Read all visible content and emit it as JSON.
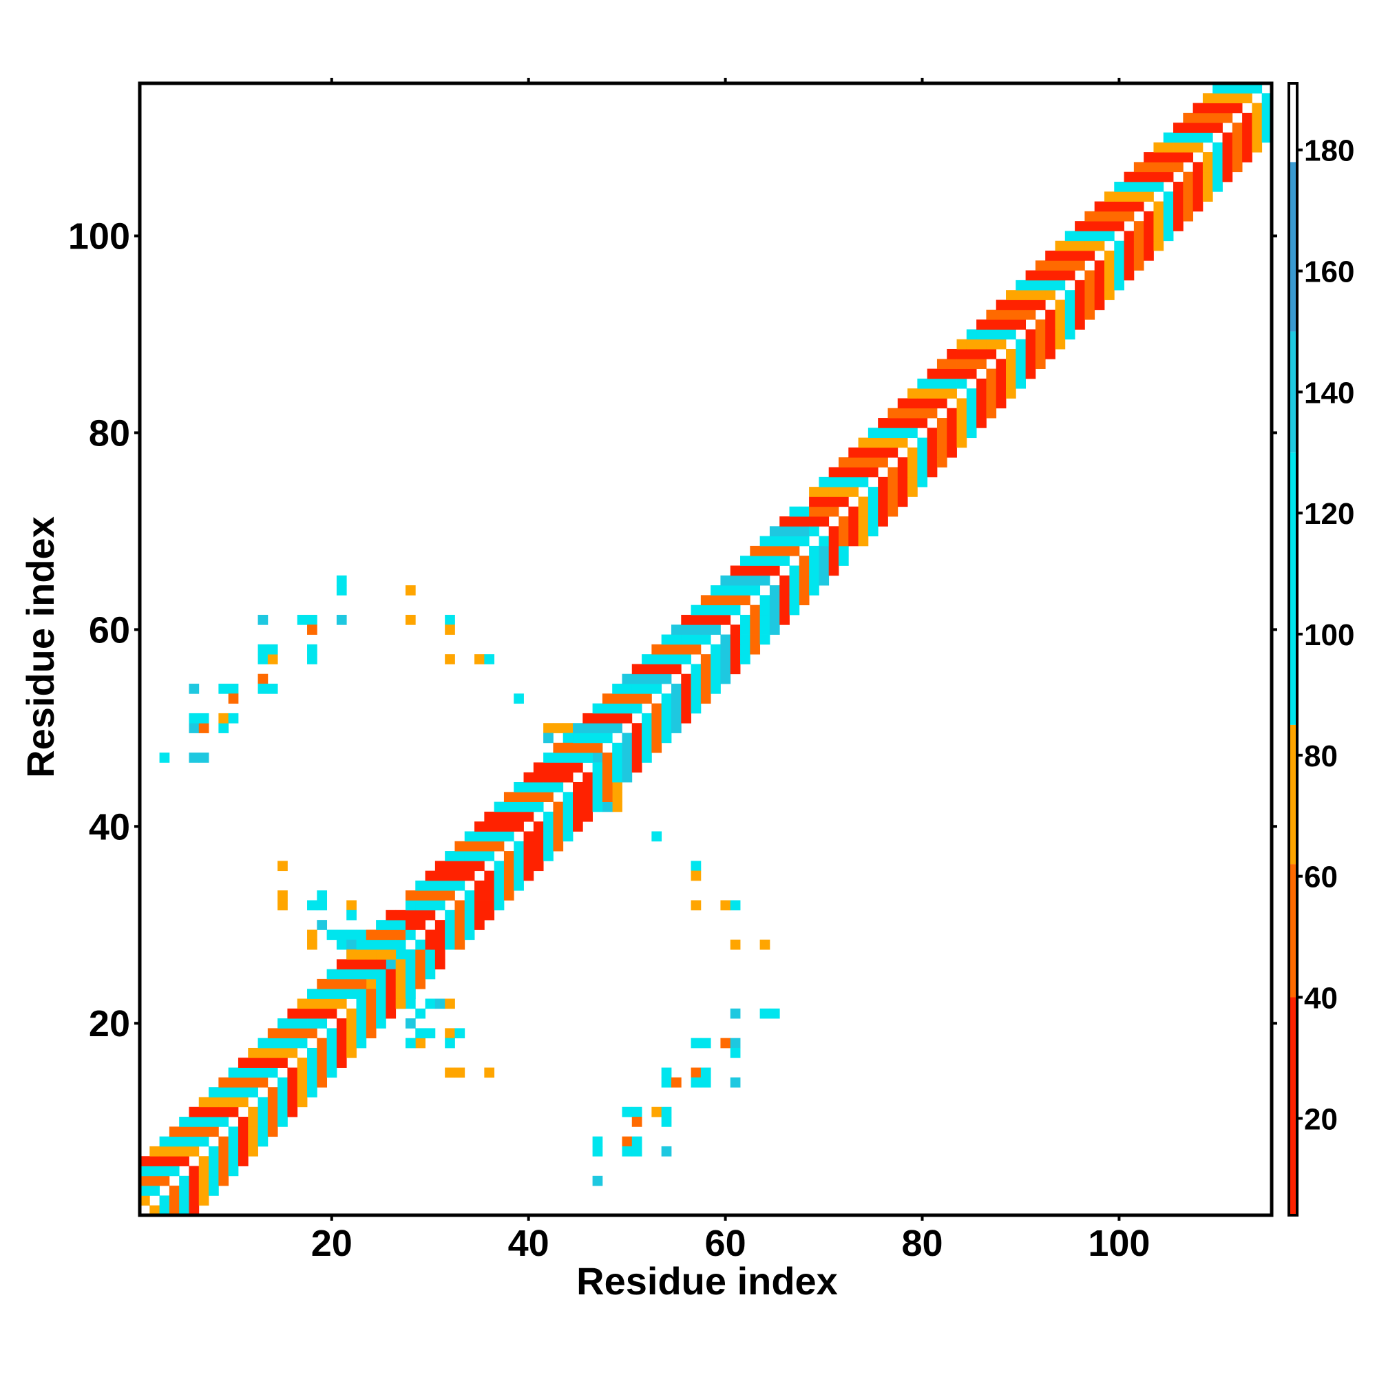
{
  "chart_data": {
    "type": "heatmap",
    "title": "",
    "xlabel": "Residue index",
    "ylabel": "Residue index",
    "xlim": [
      0.5,
      115.5
    ],
    "ylim": [
      0.5,
      115.5
    ],
    "x_ticks": [
      20,
      40,
      60,
      80,
      100
    ],
    "y_ticks": [
      20,
      40,
      60,
      80,
      100
    ],
    "x_tick_labels": [
      "20",
      "40",
      "60",
      "80",
      "100"
    ],
    "y_tick_labels": [
      "20",
      "40",
      "60",
      "80",
      "100"
    ],
    "grid": false,
    "colorbar": {
      "range": [
        4,
        191
      ],
      "ticks": [
        20,
        40,
        60,
        80,
        100,
        120,
        140,
        160,
        180
      ],
      "tick_labels": [
        "20",
        "40",
        "60",
        "80",
        "100",
        "120",
        "140",
        "160",
        "180"
      ],
      "bands": [
        {
          "from": 4,
          "to": 40,
          "color": "#ff2200"
        },
        {
          "from": 40,
          "to": 62,
          "color": "#ff6a00"
        },
        {
          "from": 62,
          "to": 85,
          "color": "#ffa500"
        },
        {
          "from": 85,
          "to": 130,
          "color": "#00e5ee"
        },
        {
          "from": 130,
          "to": 150,
          "color": "#1ec8e0"
        },
        {
          "from": 150,
          "to": 178,
          "color": "#3a9ad0"
        },
        {
          "from": 178,
          "to": 191,
          "color": "#ffffff"
        }
      ]
    },
    "diagonal_band": {
      "segments": [
        {
          "from": 1,
          "to": 27,
          "value_pattern": [
            20,
            70,
            110,
            50,
            120
          ]
        },
        {
          "from": 28,
          "to": 44,
          "value_pattern": [
            20,
            110,
            60,
            120,
            30
          ]
        },
        {
          "from": 45,
          "to": 68,
          "value_pattern": [
            20,
            110,
            50,
            120,
            140
          ]
        },
        {
          "from": 69,
          "to": 115,
          "value_pattern": [
            20,
            60,
            30,
            70,
            110
          ]
        }
      ]
    },
    "cells": [
      {
        "x": 3,
        "y": 47,
        "value": 110
      },
      {
        "x": 6,
        "y": 47,
        "value": 140
      },
      {
        "x": 7,
        "y": 47,
        "value": 140
      },
      {
        "x": 6,
        "y": 50,
        "value": 140
      },
      {
        "x": 7,
        "y": 50,
        "value": 60
      },
      {
        "x": 6,
        "y": 51,
        "value": 110
      },
      {
        "x": 7,
        "y": 51,
        "value": 110
      },
      {
        "x": 9,
        "y": 50,
        "value": 110
      },
      {
        "x": 9,
        "y": 51,
        "value": 70
      },
      {
        "x": 10,
        "y": 51,
        "value": 110
      },
      {
        "x": 6,
        "y": 54,
        "value": 140
      },
      {
        "x": 9,
        "y": 54,
        "value": 110
      },
      {
        "x": 10,
        "y": 54,
        "value": 110
      },
      {
        "x": 10,
        "y": 53,
        "value": 60
      },
      {
        "x": 13,
        "y": 55,
        "value": 60
      },
      {
        "x": 13,
        "y": 54,
        "value": 110
      },
      {
        "x": 14,
        "y": 54,
        "value": 110
      },
      {
        "x": 13,
        "y": 57,
        "value": 110
      },
      {
        "x": 14,
        "y": 57,
        "value": 70
      },
      {
        "x": 13,
        "y": 58,
        "value": 110
      },
      {
        "x": 14,
        "y": 58,
        "value": 110
      },
      {
        "x": 13,
        "y": 61,
        "value": 140
      },
      {
        "x": 17,
        "y": 61,
        "value": 110
      },
      {
        "x": 18,
        "y": 61,
        "value": 110
      },
      {
        "x": 18,
        "y": 60,
        "value": 60
      },
      {
        "x": 18,
        "y": 58,
        "value": 110
      },
      {
        "x": 18,
        "y": 57,
        "value": 110
      },
      {
        "x": 21,
        "y": 61,
        "value": 140
      },
      {
        "x": 21,
        "y": 64,
        "value": 110
      },
      {
        "x": 21,
        "y": 65,
        "value": 110
      },
      {
        "x": 28,
        "y": 64,
        "value": 70
      },
      {
        "x": 28,
        "y": 61,
        "value": 70
      },
      {
        "x": 32,
        "y": 61,
        "value": 110
      },
      {
        "x": 32,
        "y": 60,
        "value": 70
      },
      {
        "x": 32,
        "y": 57,
        "value": 70
      },
      {
        "x": 35,
        "y": 57,
        "value": 70
      },
      {
        "x": 36,
        "y": 57,
        "value": 110
      },
      {
        "x": 39,
        "y": 53,
        "value": 110
      },
      {
        "x": 42,
        "y": 50,
        "value": 70
      },
      {
        "x": 43,
        "y": 50,
        "value": 70
      },
      {
        "x": 44,
        "y": 50,
        "value": 70
      },
      {
        "x": 42,
        "y": 49,
        "value": 140
      },
      {
        "x": 44,
        "y": 49,
        "value": 110
      },
      {
        "x": 45,
        "y": 49,
        "value": 140
      },
      {
        "x": 44,
        "y": 46,
        "value": 110
      },
      {
        "x": 46,
        "y": 44,
        "value": 110
      },
      {
        "x": 47,
        "y": 44,
        "value": 110
      },
      {
        "x": 48,
        "y": 43,
        "value": 140
      },
      {
        "x": 49,
        "y": 43,
        "value": 70
      },
      {
        "x": 49,
        "y": 42,
        "value": 70
      },
      {
        "x": 48,
        "y": 42,
        "value": 140
      },
      {
        "x": 49,
        "y": 45,
        "value": 110
      },
      {
        "x": 49,
        "y": 44,
        "value": 70
      },
      {
        "x": 53,
        "y": 39,
        "value": 110
      },
      {
        "x": 57,
        "y": 36,
        "value": 110
      },
      {
        "x": 57,
        "y": 35,
        "value": 70
      },
      {
        "x": 57,
        "y": 32,
        "value": 70
      },
      {
        "x": 60,
        "y": 32,
        "value": 70
      },
      {
        "x": 61,
        "y": 32,
        "value": 110
      },
      {
        "x": 61,
        "y": 28,
        "value": 70
      },
      {
        "x": 64,
        "y": 28,
        "value": 70
      },
      {
        "x": 61,
        "y": 21,
        "value": 140
      },
      {
        "x": 64,
        "y": 21,
        "value": 110
      },
      {
        "x": 65,
        "y": 21,
        "value": 110
      },
      {
        "x": 57,
        "y": 18,
        "value": 110
      },
      {
        "x": 58,
        "y": 18,
        "value": 110
      },
      {
        "x": 60,
        "y": 18,
        "value": 60
      },
      {
        "x": 61,
        "y": 18,
        "value": 140
      },
      {
        "x": 61,
        "y": 17,
        "value": 110
      },
      {
        "x": 54,
        "y": 15,
        "value": 110
      },
      {
        "x": 54,
        "y": 14,
        "value": 110
      },
      {
        "x": 55,
        "y": 14,
        "value": 60
      },
      {
        "x": 57,
        "y": 15,
        "value": 60
      },
      {
        "x": 58,
        "y": 15,
        "value": 110
      },
      {
        "x": 57,
        "y": 14,
        "value": 110
      },
      {
        "x": 58,
        "y": 14,
        "value": 110
      },
      {
        "x": 61,
        "y": 14,
        "value": 140
      },
      {
        "x": 50,
        "y": 11,
        "value": 110
      },
      {
        "x": 51,
        "y": 11,
        "value": 110
      },
      {
        "x": 53,
        "y": 11,
        "value": 70
      },
      {
        "x": 54,
        "y": 11,
        "value": 110
      },
      {
        "x": 51,
        "y": 10,
        "value": 60
      },
      {
        "x": 54,
        "y": 10,
        "value": 110
      },
      {
        "x": 47,
        "y": 8,
        "value": 110
      },
      {
        "x": 47,
        "y": 7,
        "value": 110
      },
      {
        "x": 50,
        "y": 8,
        "value": 60
      },
      {
        "x": 51,
        "y": 8,
        "value": 110
      },
      {
        "x": 50,
        "y": 7,
        "value": 110
      },
      {
        "x": 51,
        "y": 7,
        "value": 110
      },
      {
        "x": 54,
        "y": 7,
        "value": 140
      },
      {
        "x": 47,
        "y": 4,
        "value": 140
      },
      {
        "x": 32,
        "y": 15,
        "value": 70
      },
      {
        "x": 33,
        "y": 15,
        "value": 70
      },
      {
        "x": 36,
        "y": 15,
        "value": 70
      },
      {
        "x": 29,
        "y": 18,
        "value": 70
      },
      {
        "x": 28,
        "y": 18,
        "value": 110
      },
      {
        "x": 29,
        "y": 19,
        "value": 110
      },
      {
        "x": 30,
        "y": 19,
        "value": 110
      },
      {
        "x": 32,
        "y": 19,
        "value": 70
      },
      {
        "x": 33,
        "y": 19,
        "value": 110
      },
      {
        "x": 32,
        "y": 18,
        "value": 110
      },
      {
        "x": 28,
        "y": 20,
        "value": 140
      },
      {
        "x": 29,
        "y": 21,
        "value": 110
      },
      {
        "x": 30,
        "y": 22,
        "value": 110
      },
      {
        "x": 31,
        "y": 22,
        "value": 140
      },
      {
        "x": 32,
        "y": 22,
        "value": 70
      },
      {
        "x": 15,
        "y": 36,
        "value": 70
      },
      {
        "x": 15,
        "y": 33,
        "value": 70
      },
      {
        "x": 15,
        "y": 32,
        "value": 70
      },
      {
        "x": 18,
        "y": 32,
        "value": 110
      },
      {
        "x": 19,
        "y": 32,
        "value": 110
      },
      {
        "x": 19,
        "y": 33,
        "value": 110
      },
      {
        "x": 22,
        "y": 32,
        "value": 70
      },
      {
        "x": 22,
        "y": 31,
        "value": 110
      },
      {
        "x": 18,
        "y": 29,
        "value": 70
      },
      {
        "x": 18,
        "y": 28,
        "value": 70
      },
      {
        "x": 19,
        "y": 30,
        "value": 140
      },
      {
        "x": 20,
        "y": 29,
        "value": 110
      },
      {
        "x": 21,
        "y": 29,
        "value": 110
      },
      {
        "x": 22,
        "y": 29,
        "value": 110
      },
      {
        "x": 23,
        "y": 29,
        "value": 110
      },
      {
        "x": 24,
        "y": 29,
        "value": 140
      },
      {
        "x": 25,
        "y": 29,
        "value": 140
      },
      {
        "x": 26,
        "y": 29,
        "value": 70
      },
      {
        "x": 27,
        "y": 29,
        "value": 70
      },
      {
        "x": 21,
        "y": 28,
        "value": 110
      },
      {
        "x": 22,
        "y": 28,
        "value": 140
      },
      {
        "x": 23,
        "y": 28,
        "value": 110
      },
      {
        "x": 24,
        "y": 28,
        "value": 110
      },
      {
        "x": 25,
        "y": 28,
        "value": 140
      },
      {
        "x": 26,
        "y": 28,
        "value": 110
      },
      {
        "x": 27,
        "y": 28,
        "value": 110
      },
      {
        "x": 22,
        "y": 27,
        "value": 110
      },
      {
        "x": 23,
        "y": 27,
        "value": 110
      },
      {
        "x": 24,
        "y": 27,
        "value": 110
      },
      {
        "x": 25,
        "y": 27,
        "value": 140
      },
      {
        "x": 26,
        "y": 27,
        "value": 110
      },
      {
        "x": 27,
        "y": 27,
        "value": 110
      },
      {
        "x": 28,
        "y": 27,
        "value": 110
      },
      {
        "x": 22,
        "y": 26,
        "value": 70
      },
      {
        "x": 23,
        "y": 26,
        "value": 140
      },
      {
        "x": 24,
        "y": 26,
        "value": 110
      },
      {
        "x": 25,
        "y": 26,
        "value": 110
      },
      {
        "x": 26,
        "y": 26,
        "value": 140
      },
      {
        "x": 27,
        "y": 26,
        "value": 110
      },
      {
        "x": 28,
        "y": 26,
        "value": 110
      },
      {
        "x": 23,
        "y": 25,
        "value": 70
      },
      {
        "x": 24,
        "y": 25,
        "value": 110
      },
      {
        "x": 25,
        "y": 25,
        "value": 110
      },
      {
        "x": 26,
        "y": 25,
        "value": 110
      },
      {
        "x": 27,
        "y": 25,
        "value": 140
      },
      {
        "x": 28,
        "y": 25,
        "value": 110
      },
      {
        "x": 23,
        "y": 24,
        "value": 110
      },
      {
        "x": 24,
        "y": 24,
        "value": 70
      },
      {
        "x": 25,
        "y": 24,
        "value": 110
      },
      {
        "x": 26,
        "y": 24,
        "value": 140
      },
      {
        "x": 27,
        "y": 24,
        "value": 110
      },
      {
        "x": 28,
        "y": 24,
        "value": 110
      },
      {
        "x": 23,
        "y": 23,
        "value": 110
      },
      {
        "x": 24,
        "y": 23,
        "value": 110
      },
      {
        "x": 25,
        "y": 23,
        "value": 70
      },
      {
        "x": 26,
        "y": 23,
        "value": 110
      },
      {
        "x": 27,
        "y": 23,
        "value": 110
      },
      {
        "x": 28,
        "y": 23,
        "value": 110
      },
      {
        "x": 23,
        "y": 22,
        "value": 70
      },
      {
        "x": 24,
        "y": 22,
        "value": 70
      },
      {
        "x": 25,
        "y": 22,
        "value": 70
      },
      {
        "x": 26,
        "y": 22,
        "value": 110
      },
      {
        "x": 27,
        "y": 22,
        "value": 140
      },
      {
        "x": 28,
        "y": 22,
        "value": 110
      },
      {
        "x": 45,
        "y": 48,
        "value": 110
      },
      {
        "x": 46,
        "y": 48,
        "value": 140
      },
      {
        "x": 47,
        "y": 48,
        "value": 110
      },
      {
        "x": 45,
        "y": 47,
        "value": 110
      },
      {
        "x": 46,
        "y": 47,
        "value": 110
      },
      {
        "x": 47,
        "y": 47,
        "value": 140
      },
      {
        "x": 44,
        "y": 45,
        "value": 70
      },
      {
        "x": 43,
        "y": 45,
        "value": 110
      },
      {
        "x": 66,
        "y": 69,
        "value": 110
      },
      {
        "x": 67,
        "y": 69,
        "value": 140
      },
      {
        "x": 67,
        "y": 68,
        "value": 140
      },
      {
        "x": 68,
        "y": 67,
        "value": 140
      },
      {
        "x": 69,
        "y": 67,
        "value": 110
      },
      {
        "x": 68,
        "y": 66,
        "value": 140
      },
      {
        "x": 69,
        "y": 66,
        "value": 140
      }
    ]
  }
}
